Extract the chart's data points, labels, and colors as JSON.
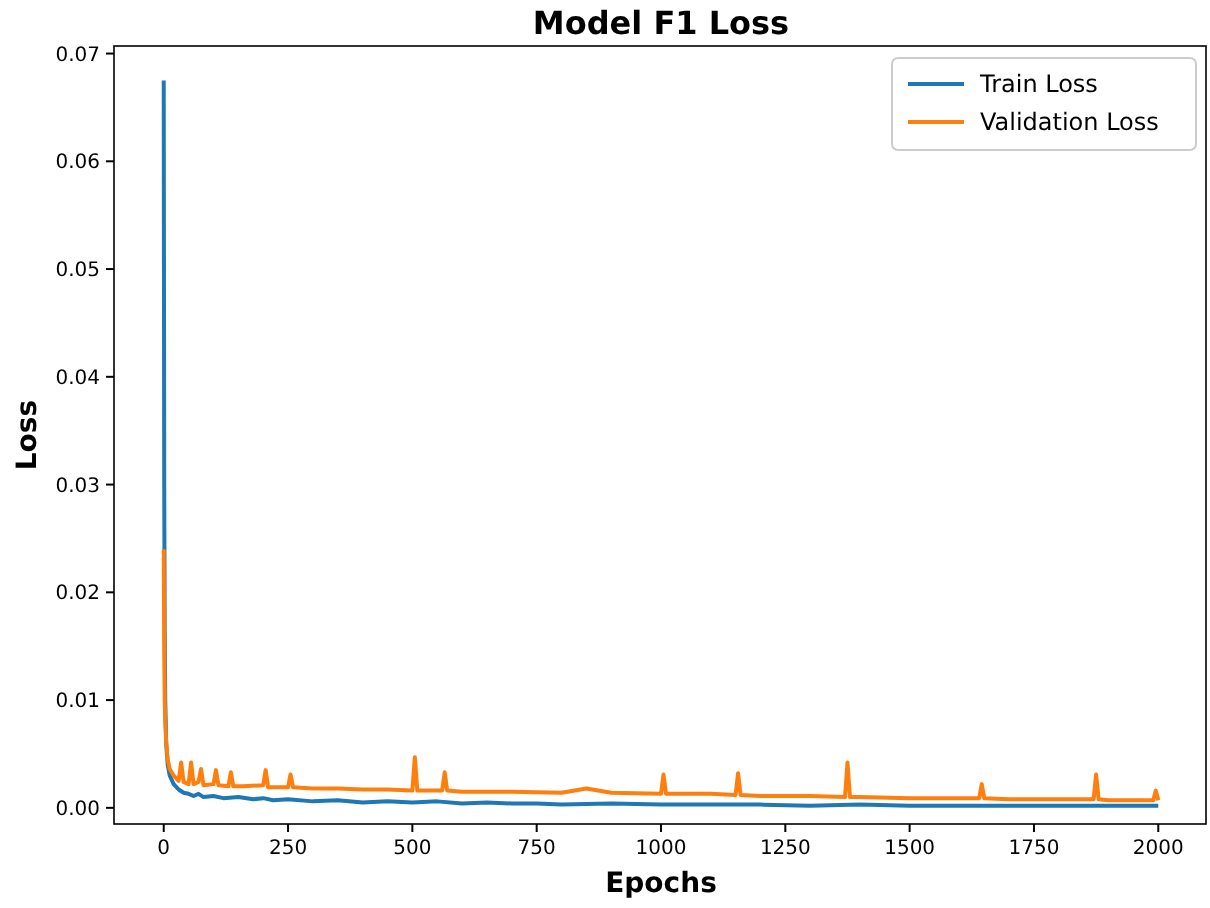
{
  "chart_data": {
    "type": "line",
    "title": "Model F1 Loss",
    "xlabel": "Epochs",
    "ylabel": "Loss",
    "xlim": [
      -100,
      2100
    ],
    "ylim": [
      -0.0015,
      0.0707
    ],
    "xticks": [
      0,
      250,
      500,
      750,
      1000,
      1250,
      1500,
      1750,
      2000
    ],
    "yticks": [
      {
        "value": 0,
        "label": "0.00"
      },
      {
        "value": 0.01,
        "label": "0.01"
      },
      {
        "value": 0.02,
        "label": "0.02"
      },
      {
        "value": 0.03,
        "label": "0.03"
      },
      {
        "value": 0.04,
        "label": "0.04"
      },
      {
        "value": 0.05,
        "label": "0.05"
      },
      {
        "value": 0.06,
        "label": "0.06"
      },
      {
        "value": 0.07,
        "label": "0.07"
      }
    ],
    "grid": false,
    "legend": "top right",
    "line_style": "solid",
    "series": [
      {
        "name": "Train Loss",
        "color": "#1f77b4",
        "x": [
          0,
          1,
          2,
          3,
          5,
          8,
          12,
          20,
          30,
          40,
          50,
          60,
          70,
          80,
          100,
          120,
          150,
          180,
          200,
          220,
          250,
          300,
          350,
          400,
          450,
          500,
          550,
          600,
          650,
          700,
          750,
          800,
          900,
          1000,
          1100,
          1200,
          1300,
          1400,
          1500,
          1600,
          1700,
          1800,
          1900,
          2000
        ],
        "values": [
          0.0675,
          0.03,
          0.016,
          0.01,
          0.006,
          0.004,
          0.003,
          0.0022,
          0.0017,
          0.0014,
          0.0013,
          0.0011,
          0.0013,
          0.001,
          0.0011,
          0.0009,
          0.001,
          0.0008,
          0.0009,
          0.0007,
          0.0008,
          0.0006,
          0.0007,
          0.0005,
          0.0006,
          0.0005,
          0.0006,
          0.0004,
          0.0005,
          0.0004,
          0.0004,
          0.0003,
          0.0004,
          0.0003,
          0.0003,
          0.0003,
          0.0002,
          0.0003,
          0.0002,
          0.0002,
          0.0002,
          0.0002,
          0.0002,
          0.0002
        ]
      },
      {
        "name": "Validation Loss",
        "color": "#ff7f0e",
        "x": [
          0,
          1,
          2,
          3,
          5,
          8,
          12,
          20,
          30,
          35,
          40,
          50,
          55,
          60,
          70,
          75,
          80,
          100,
          105,
          110,
          130,
          135,
          140,
          160,
          200,
          205,
          210,
          250,
          255,
          260,
          300,
          350,
          400,
          450,
          500,
          505,
          510,
          560,
          565,
          570,
          600,
          700,
          800,
          850,
          900,
          1000,
          1005,
          1010,
          1100,
          1150,
          1155,
          1160,
          1200,
          1300,
          1370,
          1375,
          1380,
          1400,
          1500,
          1600,
          1640,
          1645,
          1650,
          1700,
          1800,
          1870,
          1875,
          1880,
          1900,
          1990,
          1995,
          2000
        ],
        "values": [
          0.024,
          0.015,
          0.01,
          0.008,
          0.006,
          0.0045,
          0.0036,
          0.003,
          0.0025,
          0.0042,
          0.0024,
          0.0022,
          0.0042,
          0.0022,
          0.0024,
          0.0036,
          0.0021,
          0.0022,
          0.0035,
          0.0021,
          0.002,
          0.0033,
          0.002,
          0.002,
          0.0021,
          0.0035,
          0.0019,
          0.0019,
          0.0031,
          0.0019,
          0.0018,
          0.0018,
          0.0017,
          0.0017,
          0.0016,
          0.0047,
          0.0016,
          0.0016,
          0.0033,
          0.0016,
          0.0015,
          0.0015,
          0.0014,
          0.0018,
          0.0014,
          0.0013,
          0.0031,
          0.0013,
          0.0013,
          0.0012,
          0.0032,
          0.0012,
          0.0011,
          0.0011,
          0.001,
          0.0042,
          0.001,
          0.001,
          0.0009,
          0.0009,
          0.0009,
          0.0022,
          0.0009,
          0.0008,
          0.0008,
          0.0008,
          0.0031,
          0.0008,
          0.0007,
          0.0007,
          0.0016,
          0.0007
        ]
      }
    ]
  }
}
